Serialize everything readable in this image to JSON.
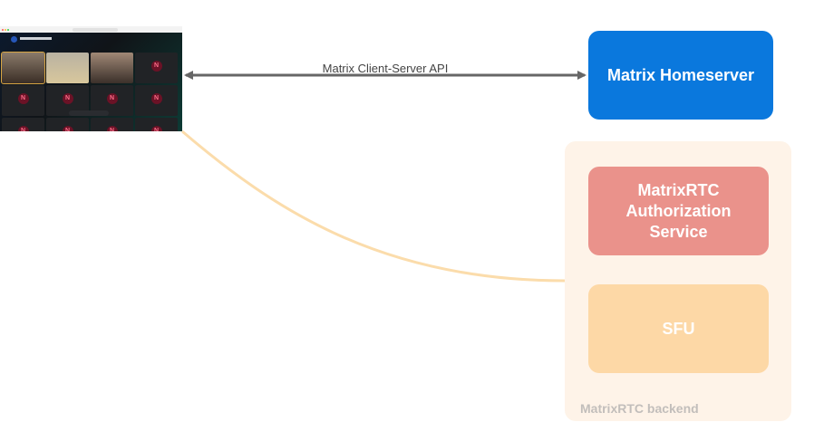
{
  "diagram": {
    "client_screenshot": {
      "description_icon": "video-call-screenshot",
      "avatar_letter": "N"
    },
    "edge_api": {
      "label": "Matrix Client-Server API",
      "color": "#666666"
    },
    "homeserver": {
      "label": "Matrix Homeserver",
      "color": "#0a78dd"
    },
    "backend": {
      "label": "MatrixRTC backend",
      "color": "#fef3e8",
      "auth": {
        "label": "MatrixRTC Authorization Service",
        "color": "#ea928b"
      },
      "sfu": {
        "label": "SFU",
        "color": "#fdd8a6"
      }
    },
    "edge_backend": {
      "color": "#fbdcab"
    }
  }
}
